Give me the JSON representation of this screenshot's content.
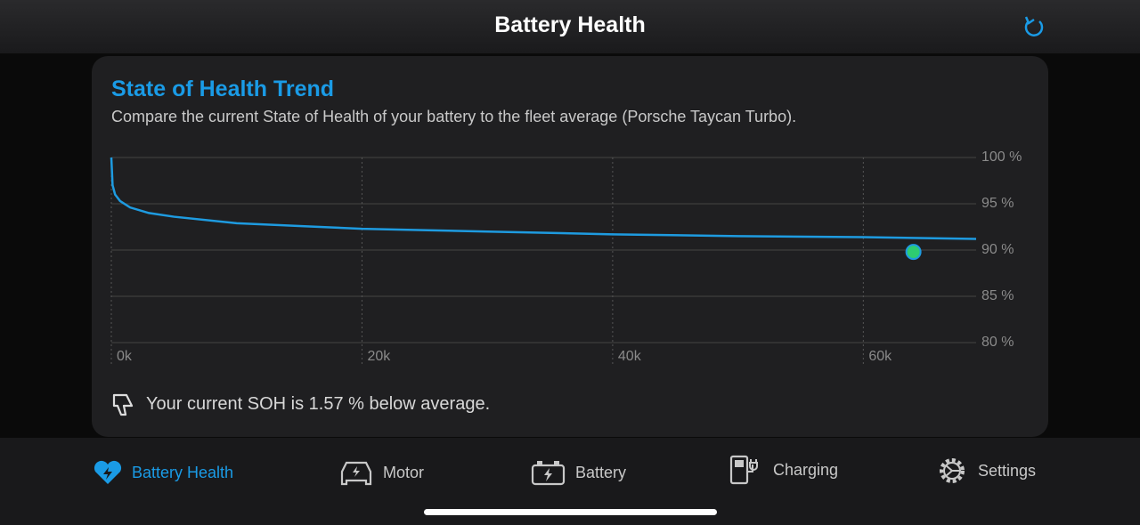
{
  "header": {
    "title": "Battery Health"
  },
  "card": {
    "title": "State of Health Trend",
    "subtitle": "Compare the current State of Health of your battery to the fleet average (Porsche Taycan Turbo).",
    "message": "Your current SOH is 1.57 % below average."
  },
  "chart_data": {
    "type": "line",
    "series": [
      {
        "color": "#1e9be0",
        "x": [
          0,
          100,
          300,
          700,
          1500,
          3000,
          5000,
          10000,
          15000,
          20000,
          30000,
          40000,
          50000,
          60000,
          69000
        ],
        "values": [
          100,
          97,
          96,
          95.3,
          94.6,
          94,
          93.6,
          92.9,
          92.6,
          92.3,
          92,
          91.7,
          91.5,
          91.4,
          91.2
        ]
      },
      {
        "color": "#2ecc71",
        "x": [
          64000
        ],
        "values": [
          89.8
        ]
      }
    ],
    "xlim": [
      0,
      69000
    ],
    "xticks": [
      {
        "value": 0,
        "label": "0k"
      },
      {
        "value": 20000,
        "label": "20k"
      },
      {
        "value": 40000,
        "label": "40k"
      },
      {
        "value": 60000,
        "label": "60k"
      }
    ],
    "ylim": [
      80,
      100
    ],
    "yticks": [
      {
        "value": 80,
        "label": "80 %"
      },
      {
        "value": 85,
        "label": "85 %"
      },
      {
        "value": 90,
        "label": "90 %"
      },
      {
        "value": 95,
        "label": "95 %"
      },
      {
        "value": 100,
        "label": "100 %"
      }
    ],
    "grid": true
  },
  "tabs": [
    "Battery Health",
    "Motor",
    "Battery",
    "Charging",
    "Settings"
  ]
}
